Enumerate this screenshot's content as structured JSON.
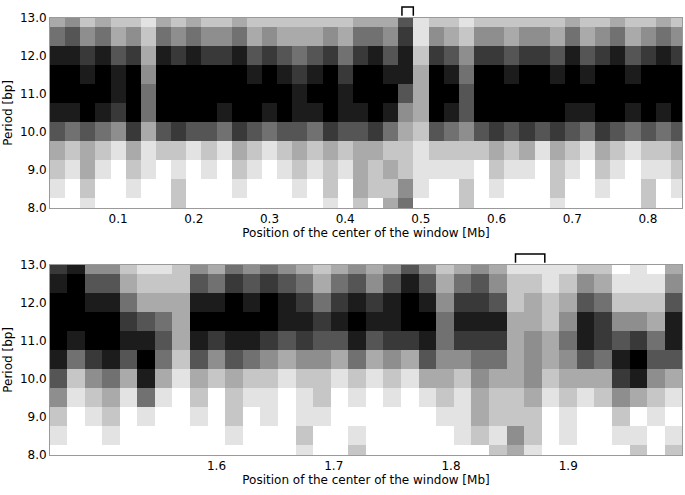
{
  "chart_data": [
    {
      "type": "heatmap",
      "x_label": "Position of the center of the window [Mb]",
      "y_label": "Period [bp]",
      "xlim": [
        0.01,
        0.845
      ],
      "ylim": [
        8.0,
        13.0
      ],
      "xticks": [
        0.1,
        0.2,
        0.3,
        0.4,
        0.5,
        0.6,
        0.7,
        0.8
      ],
      "yticks": [
        {
          "value": 8,
          "label": "8.0"
        },
        {
          "value": 9,
          "label": "9.0"
        },
        {
          "value": 10,
          "label": "10.0"
        },
        {
          "value": 11,
          "label": "11.0"
        },
        {
          "value": 12,
          "label": "12.0"
        },
        {
          "value": 13,
          "label": "13.0"
        }
      ],
      "grid": true,
      "zlim": [
        0,
        9
      ],
      "brackets": [
        [
          0.475,
          0.49
        ]
      ],
      "x": [
        0.02,
        0.04,
        0.06,
        0.08,
        0.1,
        0.12,
        0.14,
        0.16,
        0.18,
        0.2,
        0.22,
        0.24,
        0.26,
        0.28,
        0.3,
        0.32,
        0.34,
        0.36,
        0.38,
        0.4,
        0.42,
        0.44,
        0.46,
        0.48,
        0.5,
        0.52,
        0.54,
        0.56,
        0.58,
        0.6,
        0.62,
        0.64,
        0.66,
        0.68,
        0.7,
        0.72,
        0.74,
        0.76,
        0.78,
        0.8,
        0.82,
        0.84
      ],
      "y": [
        8.0,
        8.5,
        9.0,
        9.5,
        10.0,
        10.5,
        11.0,
        11.5,
        12.0,
        12.5,
        13.0
      ],
      "z": [
        [
          0,
          0,
          1,
          0,
          0,
          0,
          0,
          0,
          2,
          0,
          0,
          0,
          0,
          0,
          0,
          0,
          0,
          0,
          1,
          0,
          2,
          0,
          3,
          5,
          0,
          0,
          0,
          2,
          0,
          0,
          0,
          0,
          0,
          1,
          0,
          0,
          0,
          0,
          0,
          2,
          0,
          0
        ],
        [
          1,
          0,
          2,
          0,
          0,
          1,
          0,
          0,
          2,
          0,
          0,
          0,
          1,
          0,
          0,
          0,
          1,
          0,
          2,
          0,
          3,
          2,
          2,
          4,
          1,
          0,
          0,
          2,
          0,
          1,
          0,
          0,
          0,
          2,
          0,
          0,
          1,
          0,
          0,
          2,
          0,
          1
        ],
        [
          2,
          1,
          3,
          1,
          0,
          2,
          1,
          0,
          1,
          0,
          1,
          0,
          2,
          1,
          0,
          1,
          2,
          1,
          2,
          1,
          3,
          2,
          3,
          2,
          1,
          1,
          1,
          1,
          0,
          2,
          1,
          1,
          0,
          2,
          1,
          0,
          2,
          1,
          0,
          1,
          1,
          2
        ],
        [
          3,
          2,
          3,
          2,
          1,
          3,
          1,
          2,
          2,
          1,
          2,
          1,
          3,
          2,
          1,
          2,
          3,
          2,
          3,
          2,
          3,
          3,
          2,
          2,
          1,
          2,
          2,
          2,
          2,
          3,
          2,
          3,
          1,
          3,
          2,
          1,
          3,
          2,
          1,
          2,
          2,
          3
        ],
        [
          6,
          5,
          6,
          5,
          4,
          7,
          3,
          6,
          7,
          6,
          6,
          5,
          7,
          6,
          5,
          6,
          6,
          5,
          7,
          6,
          6,
          7,
          5,
          3,
          2,
          6,
          5,
          4,
          6,
          7,
          6,
          7,
          6,
          7,
          6,
          5,
          7,
          6,
          5,
          6,
          5,
          6
        ],
        [
          8,
          8,
          9,
          8,
          7,
          9,
          5,
          9,
          9,
          9,
          9,
          8,
          9,
          9,
          8,
          9,
          8,
          8,
          9,
          8,
          8,
          9,
          8,
          4,
          3,
          9,
          8,
          6,
          9,
          9,
          9,
          9,
          9,
          9,
          8,
          8,
          9,
          9,
          8,
          9,
          8,
          9
        ],
        [
          9,
          9,
          9,
          9,
          8,
          9,
          5,
          9,
          9,
          9,
          9,
          9,
          9,
          9,
          9,
          9,
          8,
          9,
          9,
          8,
          9,
          9,
          9,
          6,
          3,
          9,
          9,
          6,
          9,
          9,
          9,
          9,
          9,
          9,
          9,
          9,
          9,
          9,
          9,
          9,
          9,
          9
        ],
        [
          9,
          9,
          8,
          9,
          8,
          9,
          4,
          9,
          9,
          9,
          9,
          9,
          9,
          8,
          9,
          8,
          7,
          8,
          9,
          7,
          9,
          9,
          8,
          8,
          3,
          9,
          8,
          5,
          9,
          9,
          8,
          9,
          9,
          8,
          9,
          8,
          9,
          9,
          8,
          9,
          9,
          9
        ],
        [
          8,
          8,
          7,
          8,
          6,
          7,
          3,
          8,
          7,
          8,
          7,
          7,
          8,
          6,
          7,
          6,
          5,
          6,
          7,
          5,
          7,
          8,
          6,
          8,
          2,
          7,
          6,
          4,
          7,
          7,
          6,
          7,
          7,
          6,
          8,
          6,
          7,
          8,
          6,
          7,
          8,
          7
        ],
        [
          5,
          6,
          4,
          5,
          3,
          4,
          2,
          5,
          4,
          5,
          4,
          4,
          5,
          3,
          4,
          3,
          3,
          3,
          4,
          3,
          5,
          5,
          4,
          7,
          1,
          4,
          3,
          2,
          4,
          4,
          3,
          4,
          4,
          3,
          5,
          3,
          4,
          5,
          3,
          4,
          5,
          4
        ],
        [
          3,
          4,
          2,
          3,
          2,
          2,
          1,
          3,
          2,
          3,
          2,
          2,
          3,
          2,
          2,
          2,
          2,
          2,
          2,
          2,
          3,
          3,
          3,
          6,
          1,
          2,
          2,
          1,
          2,
          2,
          2,
          2,
          2,
          2,
          3,
          2,
          2,
          3,
          2,
          2,
          3,
          2
        ]
      ]
    },
    {
      "type": "heatmap",
      "x_label": "Position of the center of the window [Mb]",
      "y_label": "Period [bp]",
      "xlim": [
        1.458,
        1.997
      ],
      "ylim": [
        8.0,
        13.0
      ],
      "xticks": [
        1.6,
        1.7,
        1.8,
        1.9
      ],
      "yticks": [
        {
          "value": 8,
          "label": "8.0"
        },
        {
          "value": 9,
          "label": "9.0"
        },
        {
          "value": 10,
          "label": "10.0"
        },
        {
          "value": 11,
          "label": "11.0"
        },
        {
          "value": 12,
          "label": "12.0"
        },
        {
          "value": 13,
          "label": "13.0"
        }
      ],
      "grid": true,
      "zlim": [
        0,
        9
      ],
      "brackets": [
        [
          1.855,
          1.88
        ]
      ],
      "x": [
        1.465,
        1.48,
        1.495,
        1.51,
        1.525,
        1.54,
        1.555,
        1.57,
        1.585,
        1.6,
        1.615,
        1.63,
        1.645,
        1.66,
        1.675,
        1.69,
        1.705,
        1.72,
        1.735,
        1.75,
        1.765,
        1.78,
        1.795,
        1.81,
        1.825,
        1.84,
        1.855,
        1.87,
        1.885,
        1.9,
        1.915,
        1.93,
        1.945,
        1.96,
        1.975,
        1.99
      ],
      "y": [
        8.0,
        8.5,
        9.0,
        9.5,
        10.0,
        10.5,
        11.0,
        11.5,
        12.0,
        12.5,
        13.0
      ],
      "z": [
        [
          0,
          0,
          0,
          0,
          0,
          0,
          0,
          0,
          0,
          0,
          0,
          0,
          0,
          0,
          1,
          0,
          0,
          2,
          0,
          0,
          0,
          0,
          0,
          0,
          0,
          2,
          3,
          1,
          0,
          0,
          0,
          0,
          0,
          2,
          0,
          2
        ],
        [
          1,
          0,
          0,
          1,
          0,
          0,
          0,
          0,
          0,
          0,
          1,
          0,
          0,
          0,
          2,
          0,
          0,
          1,
          0,
          0,
          0,
          0,
          0,
          1,
          2,
          1,
          4,
          2,
          0,
          1,
          0,
          0,
          1,
          1,
          0,
          1
        ],
        [
          2,
          0,
          1,
          2,
          0,
          1,
          0,
          0,
          1,
          0,
          2,
          0,
          1,
          0,
          1,
          1,
          0,
          0,
          0,
          0,
          0,
          0,
          1,
          1,
          3,
          2,
          2,
          2,
          0,
          1,
          0,
          0,
          2,
          0,
          1,
          0
        ],
        [
          4,
          1,
          2,
          3,
          1,
          5,
          1,
          0,
          2,
          0,
          2,
          1,
          1,
          0,
          1,
          2,
          0,
          1,
          0,
          1,
          0,
          1,
          2,
          1,
          3,
          2,
          2,
          3,
          1,
          2,
          1,
          2,
          4,
          3,
          2,
          1
        ],
        [
          6,
          2,
          4,
          5,
          3,
          8,
          3,
          1,
          3,
          2,
          3,
          2,
          2,
          1,
          2,
          2,
          1,
          2,
          1,
          2,
          1,
          3,
          3,
          2,
          4,
          3,
          3,
          4,
          2,
          3,
          3,
          3,
          7,
          8,
          4,
          3
        ],
        [
          8,
          5,
          7,
          8,
          6,
          9,
          5,
          2,
          6,
          4,
          6,
          5,
          4,
          3,
          4,
          4,
          3,
          5,
          3,
          4,
          3,
          6,
          4,
          4,
          5,
          5,
          3,
          4,
          3,
          4,
          6,
          5,
          8,
          9,
          6,
          6
        ],
        [
          9,
          8,
          9,
          9,
          8,
          8,
          6,
          3,
          8,
          7,
          8,
          8,
          7,
          6,
          7,
          6,
          6,
          8,
          6,
          7,
          7,
          8,
          5,
          7,
          7,
          7,
          3,
          4,
          3,
          5,
          8,
          7,
          6,
          7,
          5,
          8
        ],
        [
          9,
          9,
          9,
          9,
          7,
          6,
          5,
          3,
          9,
          9,
          9,
          9,
          9,
          8,
          8,
          7,
          8,
          9,
          8,
          8,
          9,
          9,
          5,
          8,
          8,
          8,
          3,
          3,
          2,
          4,
          8,
          7,
          4,
          4,
          3,
          8
        ],
        [
          9,
          9,
          8,
          8,
          5,
          3,
          3,
          3,
          8,
          8,
          9,
          8,
          9,
          8,
          7,
          5,
          7,
          8,
          7,
          8,
          9,
          8,
          4,
          7,
          7,
          6,
          2,
          3,
          2,
          3,
          6,
          5,
          2,
          2,
          2,
          6
        ],
        [
          8,
          9,
          6,
          6,
          3,
          2,
          2,
          2,
          6,
          5,
          7,
          6,
          7,
          6,
          5,
          3,
          5,
          6,
          4,
          6,
          8,
          6,
          3,
          5,
          6,
          4,
          2,
          2,
          1,
          2,
          4,
          3,
          1,
          1,
          1,
          4
        ],
        [
          7,
          8,
          4,
          4,
          2,
          1,
          1,
          2,
          4,
          3,
          5,
          4,
          5,
          4,
          3,
          2,
          3,
          4,
          3,
          4,
          6,
          4,
          2,
          3,
          4,
          3,
          1,
          1,
          1,
          1,
          2,
          2,
          0,
          1,
          0,
          3
        ]
      ]
    }
  ]
}
